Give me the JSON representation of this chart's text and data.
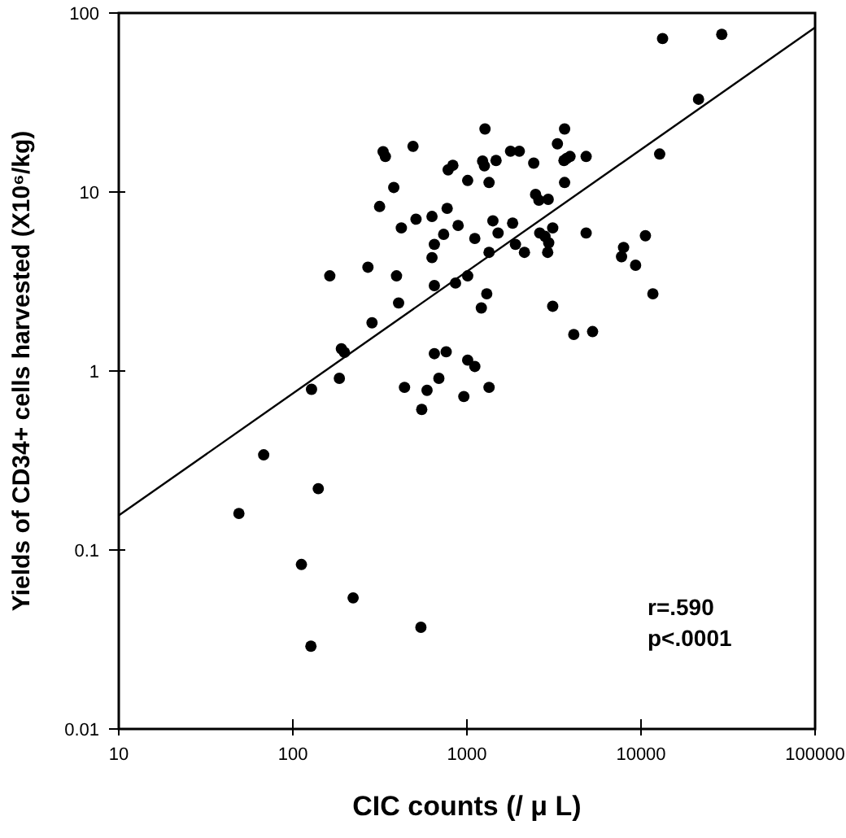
{
  "chart_data": {
    "type": "scatter",
    "xlabel": "CIC counts  (/ μ L)",
    "ylabel": "Yields of CD34+ cells harvested   (X10⁶/kg)",
    "log": "xy",
    "marker": "circle",
    "xlim": [
      10,
      100000
    ],
    "xticks": [
      10,
      100,
      1000,
      10000,
      100000
    ],
    "ylim": [
      0.01,
      100
    ],
    "yticks": [
      0.01,
      0.1,
      1,
      10,
      100
    ],
    "annotations": [
      "r=.590",
      "p<.0001"
    ],
    "series": [
      {
        "color": "#000000",
        "x": [
          1270,
          330,
          340,
          490,
          780,
          830,
          1230,
          1260,
          1470,
          1010,
          1340,
          380,
          315,
          770,
          630,
          510,
          420,
          890,
          735,
          1410,
          650,
          1110,
          630,
          1340,
          270,
          163,
          394,
          1010,
          860,
          650,
          1300,
          405,
          1210,
          285,
          190,
          198,
          650,
          760,
          1010,
          1110,
          13300,
          29100,
          21400,
          12800,
          3640,
          3310,
          3610,
          3740,
          3910,
          4840,
          1780,
          2000,
          2420,
          3640,
          2480,
          2590,
          2930,
          1830,
          1510,
          2620,
          3110,
          2810,
          2950,
          2910,
          4840,
          1900,
          2140,
          7940,
          7730,
          9310,
          10600,
          11700,
          3110,
          4110,
          5270,
          128,
          185,
          438,
          590,
          690,
          550,
          960,
          1340,
          68,
          140,
          49,
          112,
          222,
          544,
          127
        ],
        "values": [
          22.5,
          16.8,
          15.8,
          18,
          13.3,
          14.1,
          14.9,
          14,
          15,
          11.6,
          11.3,
          10.6,
          8.3,
          8.1,
          7.3,
          7.05,
          6.3,
          6.5,
          5.8,
          6.9,
          5.1,
          5.5,
          4.3,
          4.6,
          3.8,
          3.4,
          3.4,
          3.4,
          3.1,
          3.0,
          2.7,
          2.4,
          2.25,
          1.86,
          1.33,
          1.27,
          1.25,
          1.28,
          1.15,
          1.06,
          72,
          76,
          33,
          16.3,
          22.5,
          18.6,
          15,
          15.4,
          15.8,
          15.8,
          16.9,
          16.9,
          14.5,
          11.3,
          9.7,
          9.0,
          9.1,
          6.7,
          5.9,
          5.9,
          6.3,
          5.65,
          5.2,
          4.6,
          5.9,
          5.1,
          4.6,
          4.9,
          4.35,
          3.9,
          5.7,
          2.7,
          2.3,
          1.6,
          1.66,
          0.79,
          0.91,
          0.81,
          0.78,
          0.91,
          0.61,
          0.72,
          0.81,
          0.34,
          0.22,
          0.16,
          0.083,
          0.054,
          0.037,
          0.029
        ]
      },
      {
        "type": "line",
        "marker": "none",
        "color": "#000000",
        "x": [
          10,
          100000
        ],
        "values": [
          0.156,
          83
        ]
      }
    ]
  }
}
